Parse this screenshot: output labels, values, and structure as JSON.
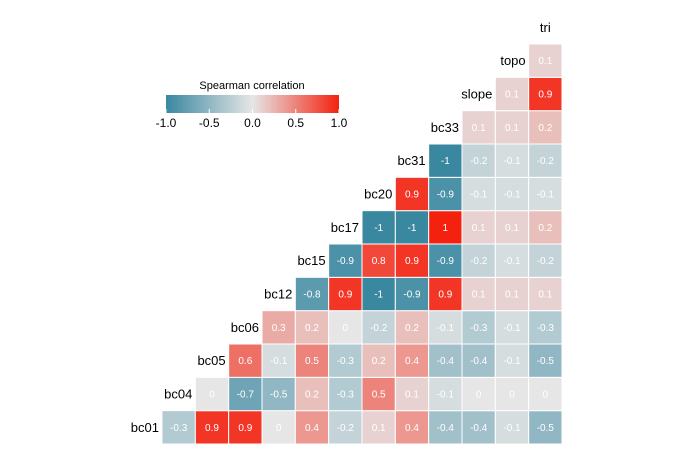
{
  "chart_data": {
    "type": "heatmap",
    "variables": [
      "bc01",
      "bc04",
      "bc05",
      "bc06",
      "bc12",
      "bc15",
      "bc17",
      "bc20",
      "bc31",
      "bc33",
      "slope",
      "topo",
      "tri"
    ],
    "rows": [
      {
        "name": "bc01",
        "values": [
          -0.3,
          0.9,
          0.9,
          0,
          0.4,
          -0.2,
          0.1,
          0.4,
          -0.4,
          -0.4,
          -0.1,
          -0.5
        ]
      },
      {
        "name": "bc04",
        "values": [
          0,
          -0.7,
          -0.5,
          0.2,
          -0.3,
          0.5,
          0.1,
          -0.1,
          0,
          0,
          0
        ]
      },
      {
        "name": "bc05",
        "values": [
          0.6,
          -0.1,
          0.5,
          -0.3,
          0.2,
          0.4,
          -0.4,
          -0.4,
          -0.1,
          -0.5
        ]
      },
      {
        "name": "bc06",
        "values": [
          0.3,
          0.2,
          0,
          -0.2,
          0.2,
          -0.1,
          -0.3,
          -0.1,
          -0.3
        ]
      },
      {
        "name": "bc12",
        "values": [
          -0.8,
          0.9,
          -1,
          -0.9,
          0.9,
          0.1,
          0.1,
          0.1
        ]
      },
      {
        "name": "bc15",
        "values": [
          -0.9,
          0.8,
          0.9,
          -0.9,
          -0.2,
          -0.1,
          -0.2
        ]
      },
      {
        "name": "bc17",
        "values": [
          -1,
          -1,
          1,
          0.1,
          0.1,
          0.2
        ]
      },
      {
        "name": "bc20",
        "values": [
          0.9,
          -0.9,
          -0.1,
          -0.1,
          -0.1
        ]
      },
      {
        "name": "bc31",
        "values": [
          -1,
          -0.2,
          -0.1,
          -0.2
        ]
      },
      {
        "name": "bc33",
        "values": [
          0.1,
          0.1,
          0.2
        ]
      },
      {
        "name": "slope",
        "values": [
          0.1,
          0.9
        ]
      },
      {
        "name": "topo",
        "values": [
          0.1
        ]
      },
      {
        "name": "tri",
        "values": []
      }
    ],
    "legend": {
      "title": "Spearman correlation",
      "ticks": [
        "-1.0",
        "-0.5",
        "0.0",
        "0.5",
        "1.0"
      ],
      "tick_values": [
        -1,
        -0.5,
        0,
        0.5,
        1
      ],
      "range": [
        -1,
        1
      ],
      "placement": "top-left"
    },
    "colors": {
      "low": "#3a87a0",
      "mid": "#e6e6e6",
      "high": "#f4210f"
    },
    "grid": false
  }
}
